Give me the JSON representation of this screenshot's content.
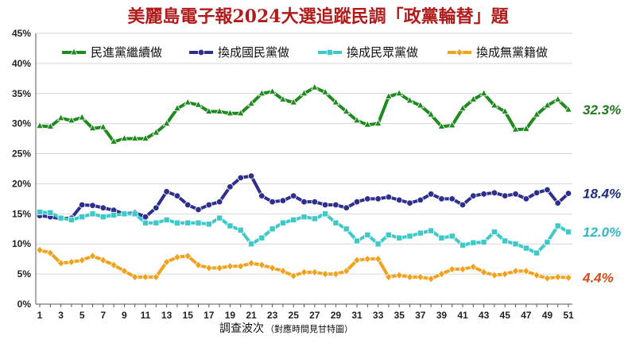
{
  "chart_data": {
    "type": "line",
    "title": "美麗島電子報2024大選追蹤民調「政黨輪替」題",
    "xlabel": "調查波次",
    "xlabel_note": "（對應時間見甘特圖）",
    "x": [
      1,
      2,
      3,
      4,
      5,
      6,
      7,
      8,
      9,
      10,
      11,
      12,
      13,
      14,
      15,
      16,
      17,
      18,
      19,
      20,
      21,
      22,
      23,
      24,
      25,
      26,
      27,
      28,
      29,
      30,
      31,
      32,
      33,
      34,
      35,
      36,
      37,
      38,
      39,
      40,
      41,
      42,
      43,
      44,
      45,
      46,
      47,
      48,
      49,
      50,
      51
    ],
    "x_tick_labels": [
      "1",
      "3",
      "5",
      "7",
      "9",
      "11",
      "13",
      "15",
      "17",
      "19",
      "21",
      "23",
      "25",
      "27",
      "29",
      "31",
      "33",
      "35",
      "37",
      "39",
      "41",
      "43",
      "45",
      "47",
      "49",
      "51"
    ],
    "ylim": [
      0,
      45
    ],
    "y_tick_labels": [
      "0%",
      "5%",
      "10%",
      "15%",
      "20%",
      "25%",
      "30%",
      "35%",
      "40%",
      "45%"
    ],
    "y_ticks": [
      0,
      5,
      10,
      15,
      20,
      25,
      30,
      35,
      40,
      45
    ],
    "grid": "horizontal",
    "legend_position": "top",
    "series": [
      {
        "name": "民進黨繼續做",
        "color": "#1f8a1f",
        "marker": "triangle",
        "end_label": "32.3%",
        "values": [
          29.6,
          29.5,
          30.9,
          30.5,
          31.0,
          29.2,
          29.4,
          27.0,
          27.5,
          27.5,
          27.5,
          28.5,
          30.0,
          32.5,
          33.5,
          33.1,
          32.0,
          32.0,
          31.7,
          31.7,
          33.3,
          35.0,
          35.3,
          34.0,
          33.5,
          35.0,
          36.0,
          35.2,
          33.5,
          32.0,
          30.5,
          29.8,
          30.0,
          34.5,
          35.0,
          33.8,
          33.0,
          31.5,
          29.5,
          29.7,
          32.5,
          34.0,
          35.0,
          33.0,
          32.0,
          29.0,
          29.1,
          31.5,
          33.0,
          34.0,
          32.3
        ]
      },
      {
        "name": "換成國民黨做",
        "color": "#2e2e8c",
        "marker": "circle",
        "end_label": "18.4%",
        "values": [
          14.7,
          14.5,
          14.2,
          14.3,
          16.5,
          16.4,
          16.0,
          15.6,
          15.0,
          15.2,
          14.5,
          16.0,
          18.7,
          18.0,
          16.5,
          15.7,
          16.5,
          17.0,
          19.5,
          21.0,
          21.3,
          18.0,
          17.0,
          17.2,
          18.0,
          17.0,
          17.0,
          16.5,
          16.5,
          16.0,
          17.0,
          17.5,
          17.5,
          17.8,
          17.3,
          16.8,
          17.3,
          18.3,
          17.5,
          17.5,
          16.5,
          18.0,
          18.3,
          18.5,
          18.0,
          18.3,
          17.5,
          18.5,
          19.0,
          16.8,
          18.4
        ]
      },
      {
        "name": "換成民眾黨做",
        "color": "#3fc8c8",
        "marker": "square",
        "end_label": "12.0%",
        "values": [
          15.3,
          15.2,
          14.3,
          14.0,
          14.5,
          15.0,
          14.5,
          14.8,
          15.0,
          15.0,
          13.5,
          13.5,
          14.0,
          13.5,
          13.5,
          13.5,
          13.3,
          14.3,
          13.0,
          12.3,
          10.0,
          11.0,
          12.5,
          13.5,
          14.0,
          14.5,
          14.2,
          15.0,
          13.5,
          12.5,
          10.5,
          11.5,
          10.0,
          11.5,
          11.0,
          11.3,
          11.8,
          12.2,
          11.0,
          11.3,
          9.8,
          10.2,
          10.3,
          12.0,
          10.5,
          10.0,
          9.3,
          8.5,
          10.3,
          13.0,
          12.0
        ]
      },
      {
        "name": "換成無黨籍做",
        "color": "#f0a21e",
        "marker": "diamond",
        "end_label": "4.4%",
        "values": [
          9.0,
          8.5,
          6.8,
          7.0,
          7.3,
          8.0,
          7.3,
          6.5,
          5.5,
          4.5,
          4.5,
          4.5,
          7.0,
          7.8,
          8.0,
          6.5,
          6.0,
          6.0,
          6.3,
          6.3,
          6.8,
          6.5,
          6.0,
          5.5,
          4.7,
          5.3,
          5.3,
          5.0,
          5.0,
          5.5,
          7.3,
          7.5,
          7.5,
          4.5,
          4.8,
          4.5,
          4.5,
          4.2,
          5.0,
          5.8,
          5.8,
          6.2,
          5.3,
          4.8,
          5.0,
          5.5,
          5.5,
          4.8,
          4.3,
          4.5,
          4.4
        ]
      }
    ]
  }
}
